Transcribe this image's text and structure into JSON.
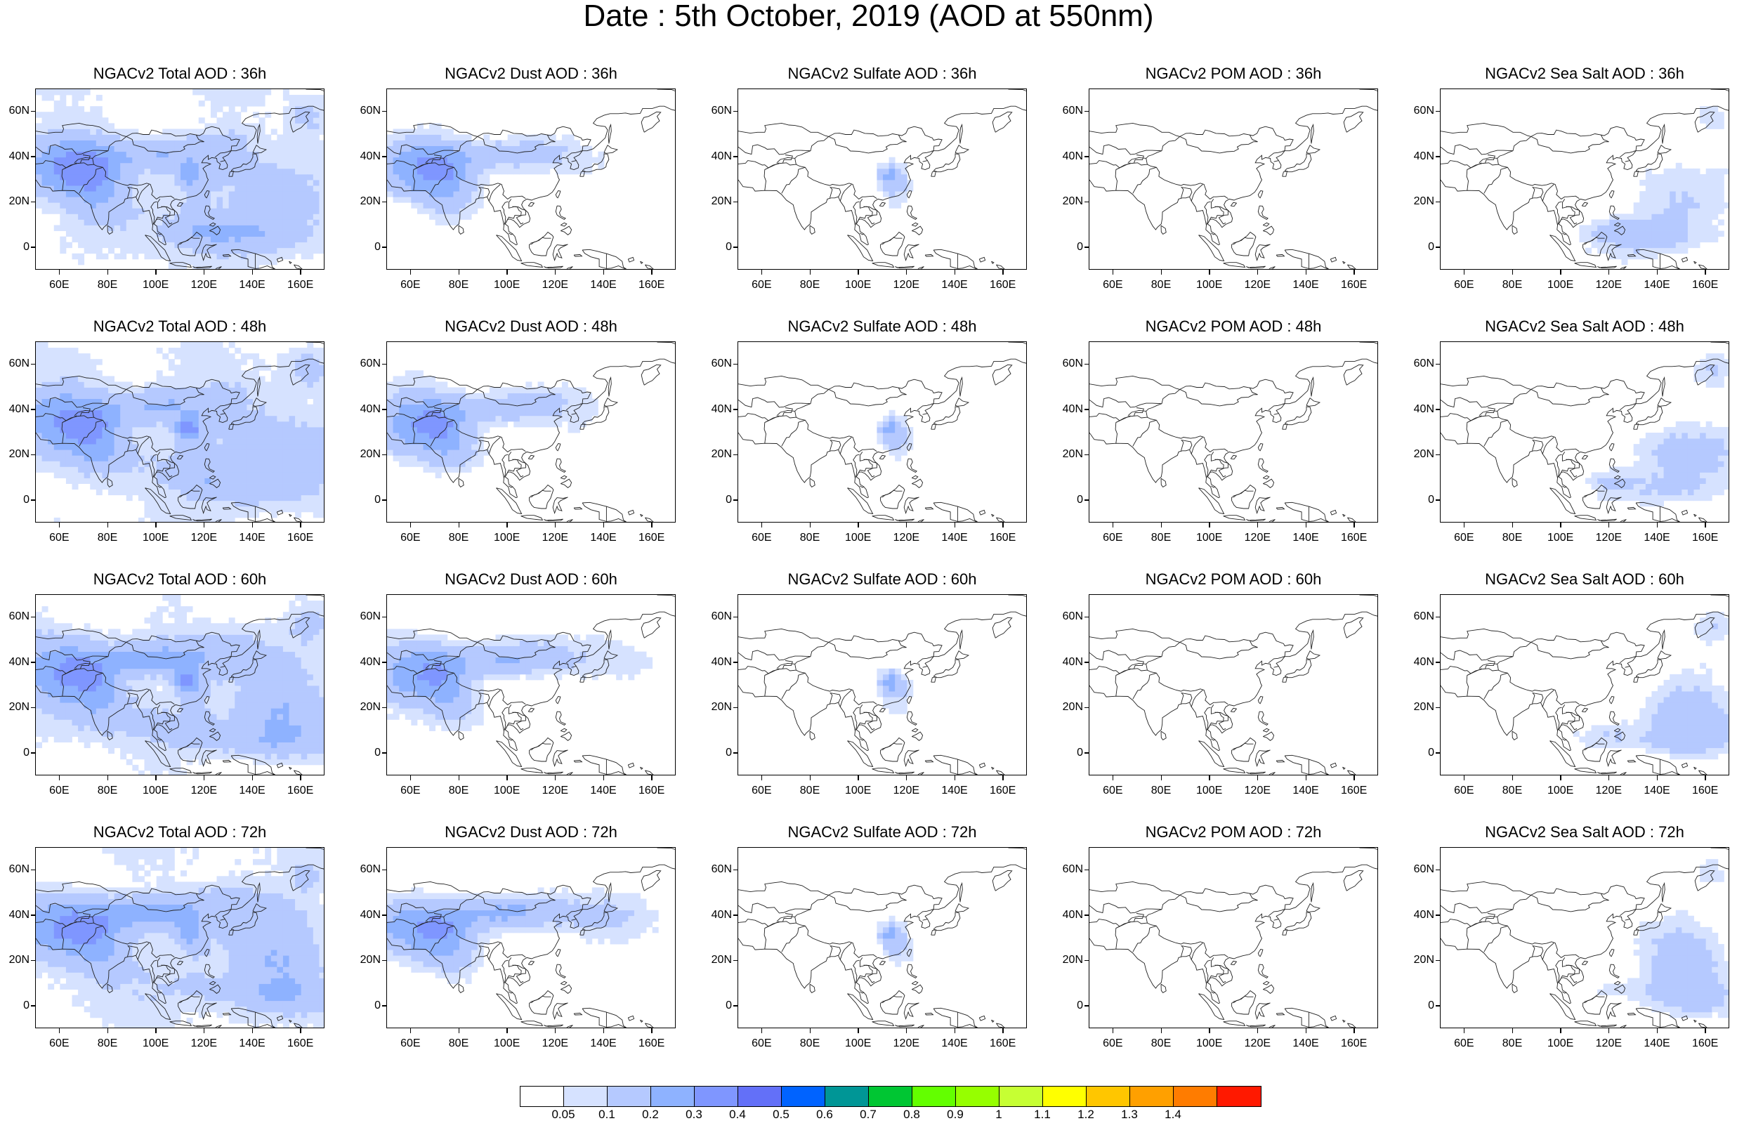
{
  "title": "Date : 5th October, 2019 (AOD at 550nm)",
  "panels": [
    {
      "title": "NGACv2 Total AOD : 36h",
      "species": "total"
    },
    {
      "title": "NGACv2 Dust AOD : 36h",
      "species": "dust"
    },
    {
      "title": "NGACv2 Sulfate AOD : 36h",
      "species": "sulfate"
    },
    {
      "title": "NGACv2 POM AOD : 36h",
      "species": "pom"
    },
    {
      "title": "NGACv2 Sea Salt AOD : 36h",
      "species": "seasalt"
    },
    {
      "title": "NGACv2 Total AOD : 48h",
      "species": "total"
    },
    {
      "title": "NGACv2 Dust AOD : 48h",
      "species": "dust"
    },
    {
      "title": "NGACv2 Sulfate AOD : 48h",
      "species": "sulfate"
    },
    {
      "title": "NGACv2 POM AOD : 48h",
      "species": "pom"
    },
    {
      "title": "NGACv2 Sea Salt AOD : 48h",
      "species": "seasalt"
    },
    {
      "title": "NGACv2 Total AOD : 60h",
      "species": "total"
    },
    {
      "title": "NGACv2 Dust AOD : 60h",
      "species": "dust"
    },
    {
      "title": "NGACv2 Sulfate AOD : 60h",
      "species": "sulfate"
    },
    {
      "title": "NGACv2 POM AOD : 60h",
      "species": "pom"
    },
    {
      "title": "NGACv2 Sea Salt AOD : 60h",
      "species": "seasalt"
    },
    {
      "title": "NGACv2 Total AOD : 72h",
      "species": "total"
    },
    {
      "title": "NGACv2 Dust AOD : 72h",
      "species": "dust"
    },
    {
      "title": "NGACv2 Sulfate AOD : 72h",
      "species": "sulfate"
    },
    {
      "title": "NGACv2 POM AOD : 72h",
      "species": "pom"
    },
    {
      "title": "NGACv2 Sea Salt  AOD : 72h",
      "species": "seasalt"
    }
  ],
  "x_ticks": [
    "60E",
    "80E",
    "100E",
    "120E",
    "140E",
    "160E"
  ],
  "y_ticks": [
    "60N",
    "40N",
    "20N",
    "0"
  ],
  "map_extent": {
    "lon": [
      50,
      170
    ],
    "lat": [
      -10,
      70
    ]
  },
  "colorbar": {
    "labels": [
      "0.05",
      "0.1",
      "0.2",
      "0.3",
      "0.4",
      "0.5",
      "0.6",
      "0.7",
      "0.8",
      "0.9",
      "1",
      "1.1",
      "1.2",
      "1.3",
      "1.4"
    ],
    "colors": [
      "#ffffff",
      "#d6e2ff",
      "#b5c9ff",
      "#8eb2ff",
      "#7f96ff",
      "#6370f8",
      "#0063ff",
      "#009696",
      "#00c633",
      "#63ff00",
      "#96ff00",
      "#c6ff33",
      "#ffff00",
      "#ffc600",
      "#ffa000",
      "#ff7c00",
      "#ff1900"
    ]
  }
}
